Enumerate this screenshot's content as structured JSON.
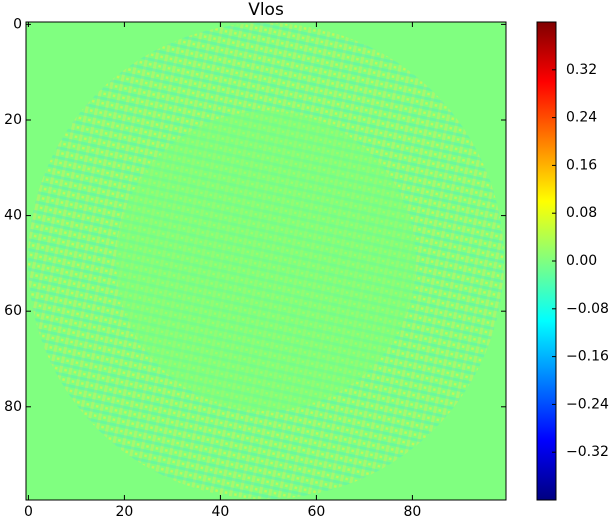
{
  "chart_data": {
    "type": "heatmap",
    "title": "Vlos",
    "colormap": "jet",
    "xlim": [
      -0.5,
      99.5
    ],
    "ylim": [
      99.5,
      -0.5
    ],
    "xticks": [
      0,
      20,
      40,
      60,
      80
    ],
    "yticks": [
      0,
      20,
      40,
      60,
      80
    ],
    "clim": [
      -0.4,
      0.4
    ],
    "cticks": [
      {
        "value": -0.32,
        "label": "−0.32"
      },
      {
        "value": -0.24,
        "label": "−0.24"
      },
      {
        "value": -0.16,
        "label": "−0.16"
      },
      {
        "value": -0.08,
        "label": "−0.08"
      },
      {
        "value": 0,
        "label": "0.00"
      },
      {
        "value": 0.08,
        "label": "0.08"
      },
      {
        "value": 0.16,
        "label": "0.16"
      },
      {
        "value": 0.24,
        "label": "0.24"
      },
      {
        "value": 0.32,
        "label": "0.32"
      }
    ]
  }
}
